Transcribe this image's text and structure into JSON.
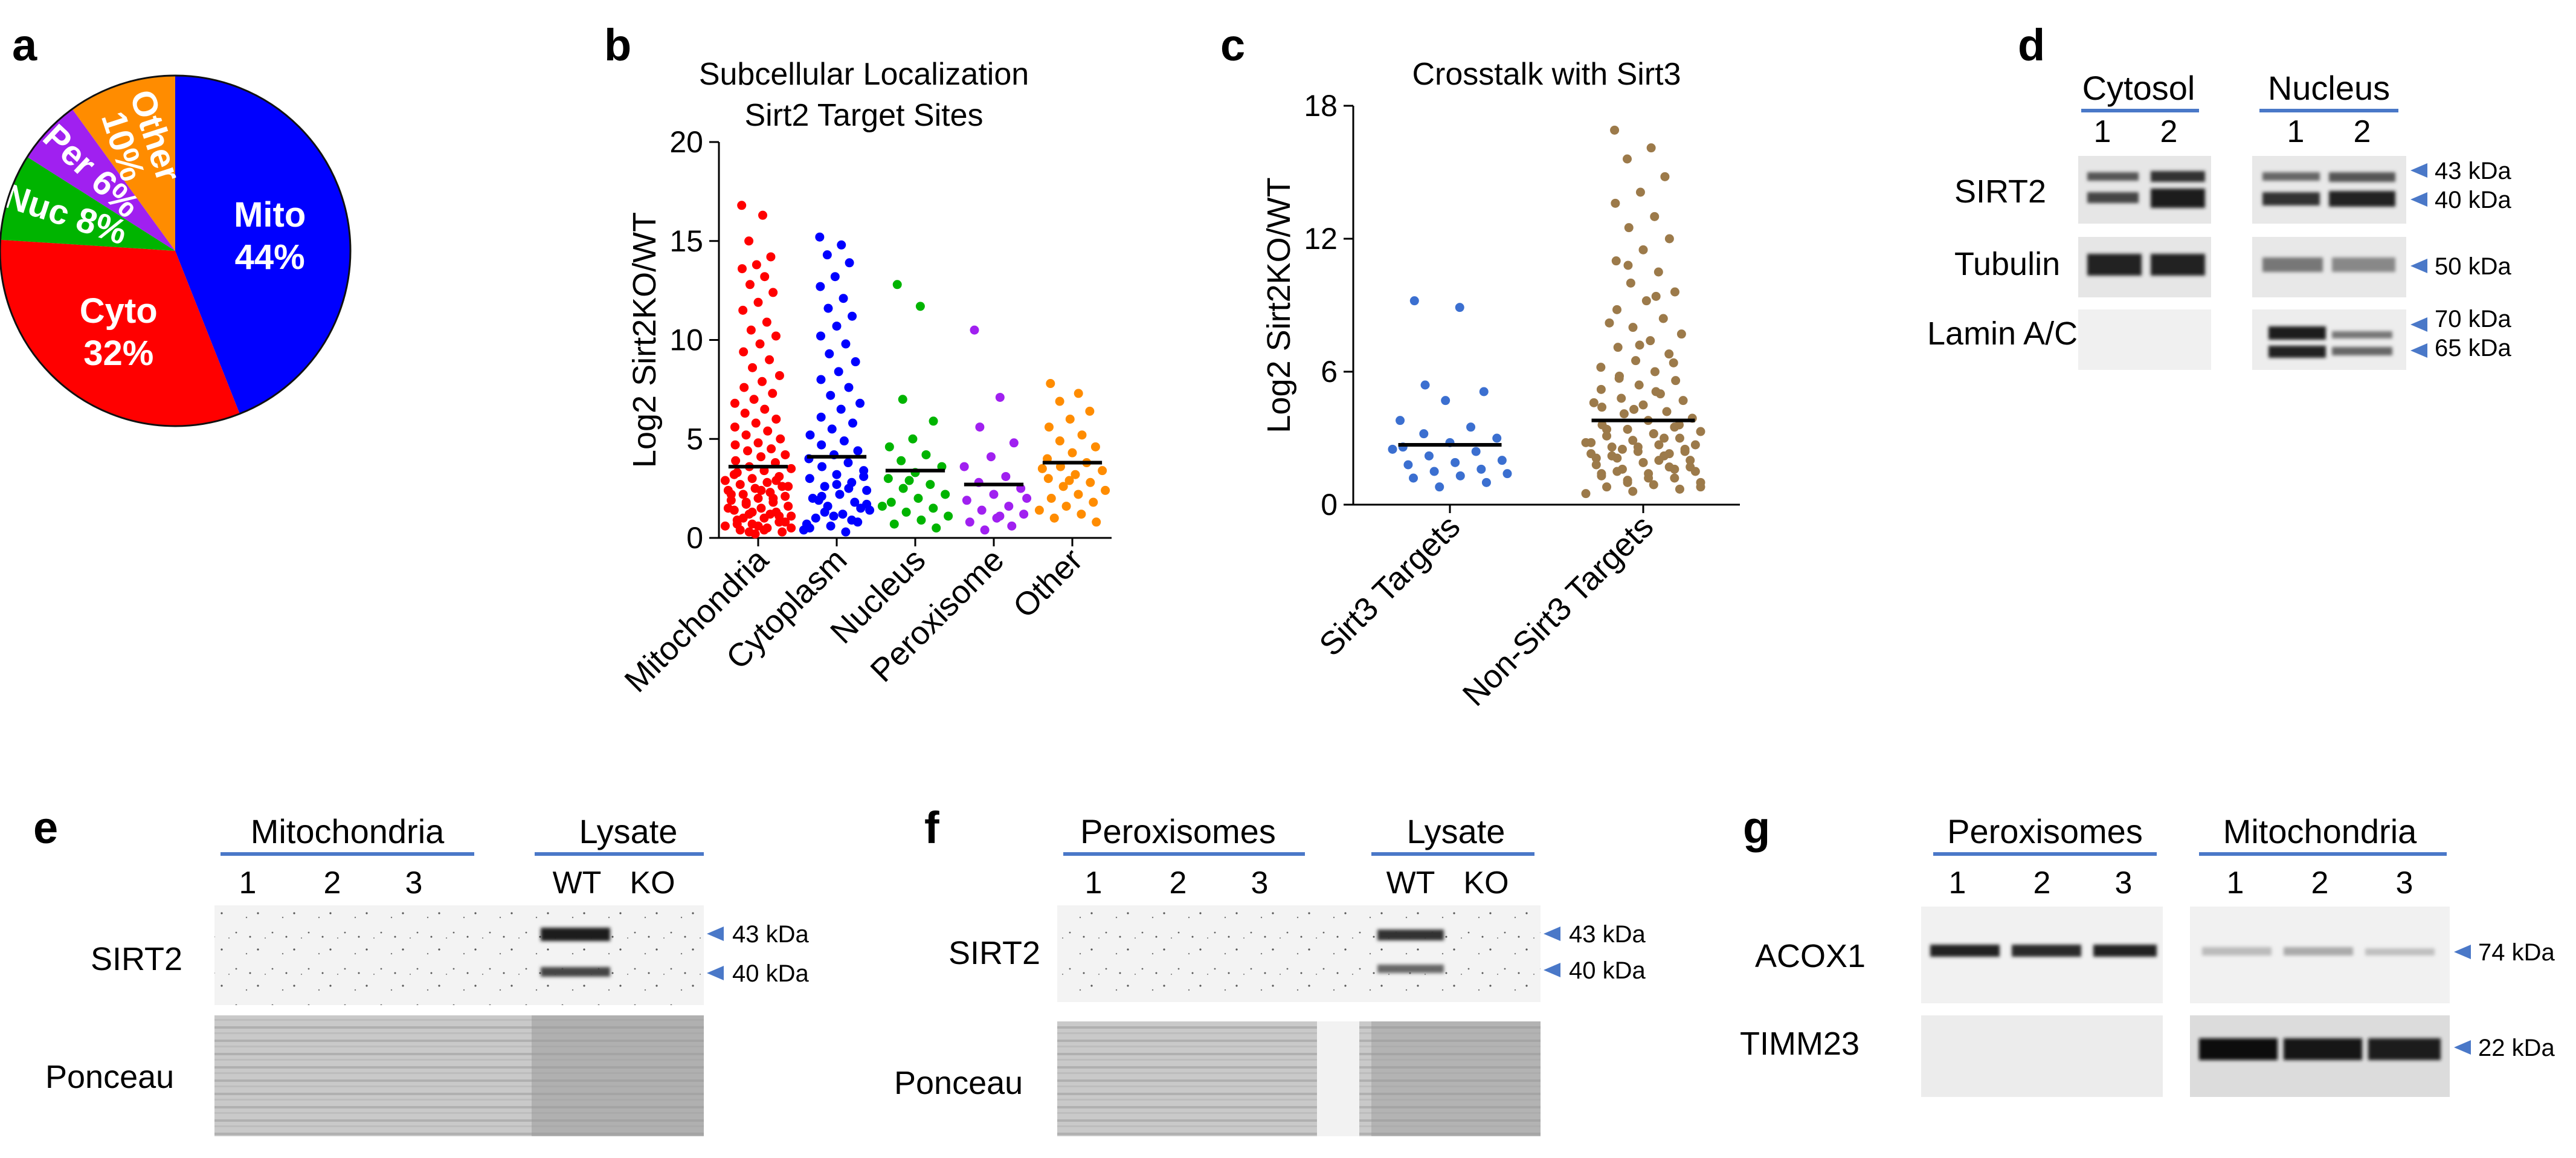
{
  "panel_labels": {
    "a": "a",
    "b": "b",
    "c": "c",
    "d": "d",
    "e": "e",
    "f": "f",
    "g": "g"
  },
  "colors": {
    "mito": "#0000ff",
    "cyto": "#ff0000",
    "nuc": "#00b400",
    "per": "#a020f0",
    "other": "#ff8c00",
    "sirt3": "#3b6fd0",
    "nonsirt3": "#9c7a4a",
    "arrow": "#4a78c8"
  },
  "chart_data": [
    {
      "type": "pie",
      "panel": "a",
      "categories": [
        "Mito",
        "Cyto",
        "Nuc",
        "Per",
        "Other"
      ],
      "values": [
        44,
        32,
        8,
        6,
        10
      ],
      "labels": [
        {
          "name": "Mito",
          "pct": "44%"
        },
        {
          "name": "Cyto",
          "pct": "32%"
        },
        {
          "name": "Nuc",
          "pct": "8%"
        },
        {
          "name": "Per",
          "pct": "6%"
        },
        {
          "name": "Other",
          "pct": "10%"
        }
      ]
    },
    {
      "type": "scatter",
      "panel": "b",
      "title": "Subcellular Localization",
      "subtitle": "Sirt2 Target Sites",
      "ylabel": "Log2 Sirt2KO/WT",
      "ylim": [
        0,
        20
      ],
      "yticks": [
        "0",
        "5",
        "10",
        "15",
        "20"
      ],
      "categories": [
        "Mitochondria",
        "Cytoplasm",
        "Nucleus",
        "Peroxisome",
        "Other"
      ],
      "medians": [
        3.6,
        4.1,
        3.4,
        2.7,
        3.8
      ],
      "series": [
        {
          "name": "Mitochondria",
          "values": [
            16.8,
            16.3,
            15.0,
            14.2,
            13.8,
            13.6,
            13.2,
            12.8,
            12.4,
            11.9,
            11.5,
            10.9,
            10.5,
            10.2,
            9.8,
            9.4,
            9.0,
            8.6,
            8.2,
            7.9,
            7.6,
            7.3,
            7.0,
            6.8,
            6.5,
            6.3,
            6.0,
            5.8,
            5.6,
            5.4,
            5.2,
            5.0,
            4.8,
            4.7,
            4.5,
            4.4,
            4.2,
            4.1,
            3.9,
            3.8,
            3.6,
            3.5,
            3.4,
            3.3,
            3.1,
            3.0,
            2.9,
            2.8,
            2.7,
            2.6,
            2.5,
            2.4,
            2.3,
            2.2,
            2.1,
            2.0,
            1.9,
            1.8,
            1.7,
            1.6,
            1.5,
            1.4,
            1.3,
            1.2,
            1.1,
            1.0,
            0.9,
            0.8,
            0.7,
            0.6,
            0.5,
            0.4,
            0.3,
            0.2,
            1.5,
            1.2,
            1.0,
            0.8,
            0.6,
            2.2,
            2.0,
            1.8,
            2.6,
            2.4,
            3.2,
            2.9,
            0.3,
            0.5,
            0.4,
            0.7,
            1.1,
            1.3
          ]
        },
        {
          "name": "Cytoplasm",
          "values": [
            15.2,
            14.8,
            14.3,
            13.9,
            13.2,
            12.7,
            12.1,
            11.6,
            11.2,
            10.7,
            10.2,
            9.8,
            9.3,
            8.9,
            8.4,
            8.0,
            7.6,
            7.2,
            6.8,
            6.5,
            6.1,
            5.8,
            5.5,
            5.2,
            4.9,
            4.7,
            4.4,
            4.2,
            4.0,
            3.8,
            3.6,
            3.4,
            3.2,
            3.0,
            2.8,
            2.6,
            2.4,
            2.2,
            2.0,
            1.8,
            1.6,
            1.4,
            1.2,
            1.0,
            0.8,
            0.6,
            0.4,
            0.3,
            1.9,
            1.5,
            1.1,
            0.7,
            2.5,
            2.1,
            3.1,
            2.7,
            0.5,
            0.9,
            1.3,
            1.7
          ]
        },
        {
          "name": "Nucleus",
          "values": [
            12.8,
            11.7,
            7.0,
            5.9,
            5.0,
            4.6,
            4.2,
            3.9,
            3.6,
            3.3,
            3.0,
            2.7,
            2.5,
            2.2,
            2.0,
            1.8,
            1.5,
            1.3,
            1.1,
            0.9,
            0.7,
            0.5,
            2.9,
            1.6
          ]
        },
        {
          "name": "Peroxisome",
          "values": [
            10.5,
            7.1,
            5.6,
            4.8,
            4.1,
            3.6,
            3.1,
            2.8,
            2.5,
            2.2,
            1.9,
            1.6,
            1.4,
            1.2,
            1.0,
            0.8,
            0.6,
            0.4,
            2.0,
            1.1
          ]
        },
        {
          "name": "Other",
          "values": [
            7.8,
            7.3,
            6.9,
            6.4,
            6.0,
            5.6,
            5.2,
            4.9,
            4.6,
            4.3,
            4.0,
            3.8,
            3.6,
            3.4,
            3.2,
            3.0,
            2.8,
            2.6,
            2.4,
            2.2,
            2.0,
            1.8,
            1.6,
            1.4,
            1.2,
            1.0,
            0.8,
            2.9,
            3.5
          ]
        }
      ]
    },
    {
      "type": "scatter",
      "panel": "c",
      "title": "Crosstalk with Sirt3",
      "ylabel": "Log2 Sirt2KO/WT",
      "ylim": [
        0,
        18
      ],
      "yticks": [
        "0",
        "6",
        "12",
        "18"
      ],
      "categories": [
        "Sirt3 Targets",
        "Non-Sirt3 Targets"
      ],
      "medians": [
        2.7,
        3.8
      ],
      "series": [
        {
          "name": "Sirt3 Targets",
          "values": [
            9.2,
            8.9,
            5.4,
            5.1,
            4.7,
            3.8,
            3.5,
            3.2,
            3.0,
            2.8,
            2.6,
            2.4,
            2.2,
            2.0,
            1.9,
            1.8,
            1.6,
            1.5,
            1.4,
            1.3,
            1.2,
            1.0,
            0.8,
            2.5
          ]
        },
        {
          "name": "Non-Sirt3 Targets",
          "values": [
            16.9,
            16.1,
            15.6,
            14.8,
            14.1,
            13.6,
            13.0,
            12.5,
            12.0,
            11.5,
            11.0,
            10.5,
            10.0,
            9.6,
            9.2,
            8.8,
            8.4,
            8.0,
            7.7,
            7.4,
            7.1,
            6.8,
            6.5,
            6.2,
            6.0,
            5.8,
            5.6,
            5.4,
            5.2,
            5.0,
            4.8,
            4.7,
            4.5,
            4.4,
            4.2,
            4.1,
            3.9,
            3.8,
            3.6,
            3.5,
            3.4,
            3.3,
            3.2,
            3.1,
            3.0,
            2.9,
            2.8,
            2.7,
            2.6,
            2.5,
            2.4,
            2.3,
            2.2,
            2.1,
            2.0,
            1.9,
            1.8,
            1.7,
            1.6,
            1.5,
            1.4,
            1.3,
            1.2,
            1.1,
            1.0,
            0.9,
            0.8,
            0.7,
            0.6,
            0.5,
            2.0,
            2.2,
            2.4,
            2.6,
            2.8,
            3.0,
            1.5,
            1.7,
            1.9,
            2.1,
            2.3,
            2.5,
            2.7,
            1.2,
            1.4,
            1.6,
            1.0,
            0.8,
            3.2,
            3.4,
            3.6,
            4.3,
            4.6,
            5.1,
            5.7,
            6.4,
            7.2,
            8.2,
            9.4,
            10.8
          ]
        }
      ]
    }
  ],
  "panel_d": {
    "groups": [
      "Cytosol",
      "Nucleus"
    ],
    "lanes": [
      "1",
      "2",
      "1",
      "2"
    ],
    "rows": [
      "SIRT2",
      "Tubulin",
      "Lamin A/C"
    ],
    "markers": [
      "43 kDa",
      "40 kDa",
      "50 kDa",
      "70 kDa",
      "65 kDa"
    ]
  },
  "panel_e": {
    "groups": [
      "Mitochondria",
      "Lysate"
    ],
    "lanes": [
      "1",
      "2",
      "3",
      "WT",
      "KO"
    ],
    "rows": [
      "SIRT2",
      "Ponceau"
    ],
    "markers": [
      "43 kDa",
      "40 kDa"
    ]
  },
  "panel_f": {
    "groups": [
      "Peroxisomes",
      "Lysate"
    ],
    "lanes": [
      "1",
      "2",
      "3",
      "WT",
      "KO"
    ],
    "rows": [
      "SIRT2",
      "Ponceau"
    ],
    "markers": [
      "43 kDa",
      "40 kDa"
    ]
  },
  "panel_g": {
    "groups": [
      "Peroxisomes",
      "Mitochondria"
    ],
    "lanes": [
      "1",
      "2",
      "3",
      "1",
      "2",
      "3"
    ],
    "rows": [
      "ACOX1",
      "TIMM23"
    ],
    "markers": [
      "74 kDa",
      "22 kDa"
    ]
  }
}
